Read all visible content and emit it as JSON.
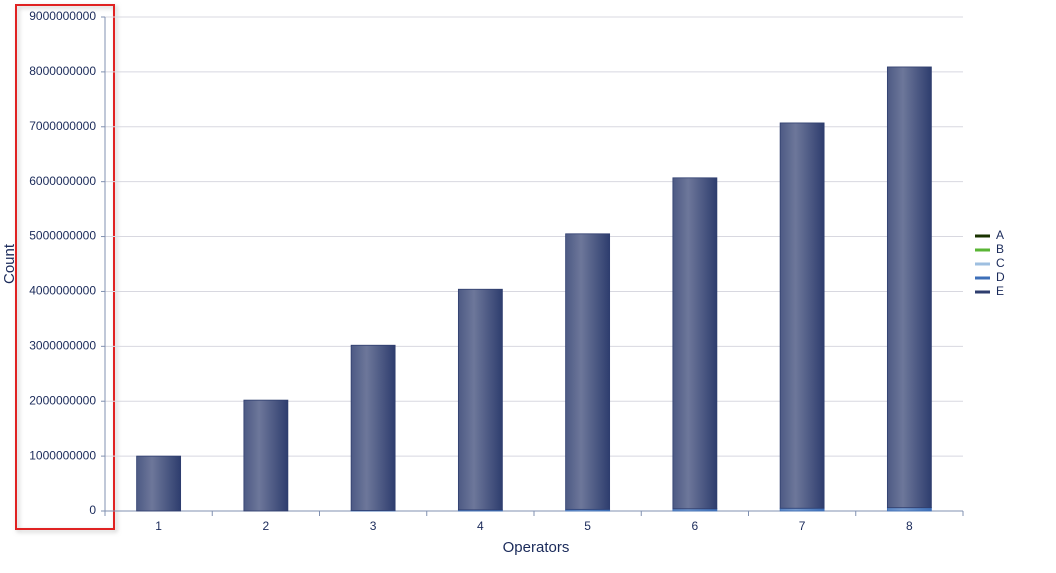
{
  "chart_data": {
    "type": "stacked-bar",
    "x_label": "Operators",
    "y_label": "Count",
    "categories": [
      "1",
      "2",
      "3",
      "4",
      "5",
      "6",
      "7",
      "8"
    ],
    "series": [
      {
        "name": "A",
        "color": "#1a3300",
        "values": [
          0,
          0,
          0,
          0,
          0,
          0,
          0,
          0
        ]
      },
      {
        "name": "B",
        "color": "#5ab535",
        "values": [
          0,
          0,
          0,
          0,
          0,
          0,
          0,
          0
        ]
      },
      {
        "name": "C",
        "color": "#9ebfe0",
        "values": [
          0,
          0,
          0,
          0,
          0,
          0,
          0,
          0
        ]
      },
      {
        "name": "D",
        "color": "#3d6fb8",
        "values": [
          0,
          0,
          10000000,
          20000000,
          30000000,
          40000000,
          50000000,
          60000000
        ]
      },
      {
        "name": "E",
        "color": "#2e3d6e",
        "values": [
          1000000000,
          2020000000,
          3010000000,
          4020000000,
          5020000000,
          6030000000,
          7020000000,
          8030000000
        ]
      }
    ],
    "ylim": [
      0,
      9000000000
    ],
    "yticks": [
      0,
      1000000000,
      2000000000,
      3000000000,
      4000000000,
      5000000000,
      6000000000,
      7000000000,
      8000000000,
      9000000000
    ],
    "grid": true,
    "legend": "right"
  }
}
